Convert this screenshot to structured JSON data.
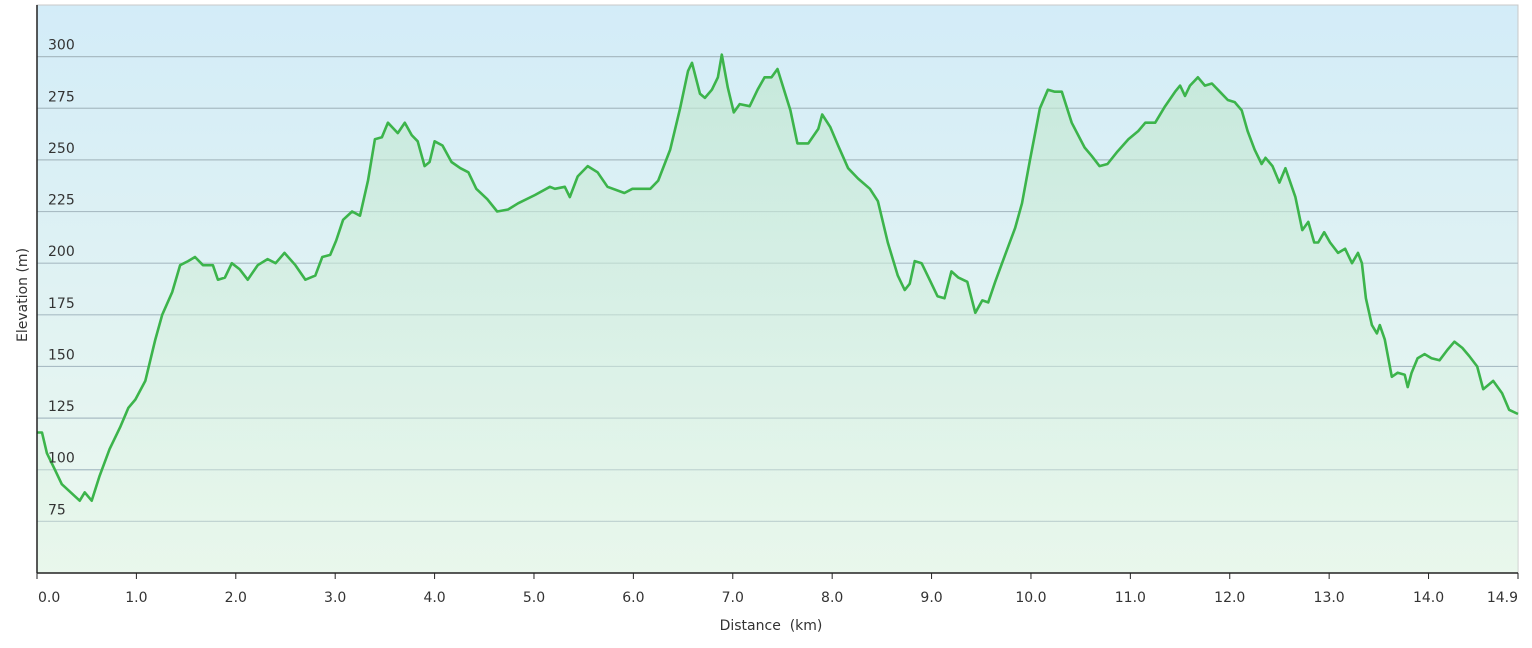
{
  "chart_data": {
    "type": "area-line",
    "x_label": "Distance  (km)",
    "y_label": "Elevation (m)",
    "color": "#3cb44b",
    "grid": true,
    "xlim": [
      0,
      14.9
    ],
    "ylim": [
      50,
      325
    ],
    "xticks": [
      {
        "value": 0,
        "label": "0.0"
      },
      {
        "value": 1,
        "label": "1.0"
      },
      {
        "value": 2,
        "label": "2.0"
      },
      {
        "value": 3,
        "label": "3.0"
      },
      {
        "value": 4,
        "label": "4.0"
      },
      {
        "value": 5,
        "label": "5.0"
      },
      {
        "value": 6,
        "label": "6.0"
      },
      {
        "value": 7,
        "label": "7.0"
      },
      {
        "value": 8,
        "label": "8.0"
      },
      {
        "value": 9,
        "label": "9.0"
      },
      {
        "value": 10,
        "label": "10.0"
      },
      {
        "value": 11,
        "label": "11.0"
      },
      {
        "value": 12,
        "label": "12.0"
      },
      {
        "value": 13,
        "label": "13.0"
      },
      {
        "value": 14,
        "label": "14.0"
      },
      14.9
    ],
    "yticks": [
      75,
      100,
      125,
      150,
      175,
      200,
      225,
      250,
      275,
      300
    ],
    "x": [
      0,
      0.05,
      0.1,
      0.18,
      0.25,
      0.43,
      0.48,
      0.55,
      0.63,
      0.73,
      0.84,
      0.92,
      0.99,
      1.09,
      1.19,
      1.26,
      1.36,
      1.44,
      1.52,
      1.59,
      1.67,
      1.77,
      1.82,
      1.89,
      1.96,
      2.04,
      2.12,
      2.22,
      2.32,
      2.4,
      2.49,
      2.6,
      2.7,
      2.8,
      2.87,
      2.95,
      3.01,
      3.08,
      3.17,
      3.25,
      3.33,
      3.4,
      3.47,
      3.53,
      3.63,
      3.7,
      3.77,
      3.83,
      3.9,
      3.95,
      4.0,
      4.08,
      4.17,
      4.26,
      4.34,
      4.42,
      4.53,
      4.63,
      4.74,
      4.84,
      5.01,
      5.16,
      5.21,
      5.31,
      5.36,
      5.44,
      5.54,
      5.64,
      5.74,
      5.91,
      5.99,
      6.17,
      6.25,
      6.37,
      6.47,
      6.55,
      6.59,
      6.67,
      6.72,
      6.79,
      6.85,
      6.89,
      6.95,
      7.01,
      7.07,
      7.17,
      7.25,
      7.32,
      7.39,
      7.45,
      7.58,
      7.65,
      7.76,
      7.86,
      7.9,
      7.98,
      8.06,
      8.16,
      8.26,
      8.38,
      8.46,
      8.56,
      8.66,
      8.73,
      8.78,
      8.83,
      8.9,
      8.98,
      9.06,
      9.13,
      9.2,
      9.27,
      9.36,
      9.44,
      9.51,
      9.57,
      9.64,
      9.74,
      9.84,
      9.91,
      9.99,
      10.09,
      10.17,
      10.24,
      10.31,
      10.41,
      10.54,
      10.61,
      10.69,
      10.77,
      10.87,
      10.98,
      11.08,
      11.15,
      11.25,
      11.35,
      11.45,
      11.5,
      11.55,
      11.6,
      11.68,
      11.75,
      11.82,
      11.9,
      11.98,
      12.05,
      12.12,
      12.18,
      12.25,
      12.32,
      12.36,
      12.43,
      12.5,
      12.56,
      12.66,
      12.73,
      12.79,
      12.85,
      12.89,
      12.95,
      13.01,
      13.09,
      13.16,
      13.23,
      13.29,
      13.33,
      13.37,
      13.43,
      13.48,
      13.51,
      13.56,
      13.63,
      13.69,
      13.76,
      13.79,
      13.83,
      13.89,
      13.96,
      14.03,
      14.11,
      14.19,
      14.26,
      14.34,
      14.41,
      14.49,
      14.55,
      14.65,
      14.74,
      14.81,
      14.9
    ],
    "values": [
      118,
      118,
      108,
      100,
      93,
      85,
      89,
      85,
      97,
      110,
      121,
      130,
      134,
      143,
      163,
      175,
      186,
      199,
      201,
      203,
      199,
      199,
      192,
      193,
      200,
      197,
      192,
      199,
      202,
      200,
      205,
      199,
      192,
      194,
      203,
      204,
      211,
      221,
      225,
      223,
      240,
      260,
      261,
      268,
      263,
      268,
      262,
      259,
      247,
      249,
      259,
      257,
      249,
      246,
      244,
      236,
      231,
      225,
      226,
      229,
      233,
      237,
      236,
      237,
      232,
      242,
      247,
      244,
      237,
      234,
      236,
      236,
      240,
      255,
      275,
      293,
      297,
      282,
      280,
      284,
      290,
      301,
      285,
      273,
      277,
      276,
      284,
      290,
      290,
      294,
      274,
      258,
      258,
      265,
      272,
      266,
      257,
      246,
      241,
      236,
      230,
      210,
      194,
      187,
      190,
      201,
      200,
      192,
      184,
      183,
      196,
      193,
      191,
      176,
      182,
      181,
      191,
      204,
      217,
      229,
      250,
      275,
      284,
      283,
      283,
      268,
      256,
      252,
      247,
      248,
      254,
      260,
      264,
      268,
      268,
      276,
      283,
      286,
      281,
      286,
      290,
      286,
      287,
      283,
      279,
      278,
      274,
      264,
      255,
      248,
      251,
      247,
      239,
      246,
      232,
      216,
      220,
      210,
      210,
      215,
      210,
      205,
      207,
      200,
      205,
      200,
      183,
      170,
      166,
      170,
      163,
      145,
      147,
      146,
      140,
      147,
      154,
      156,
      154,
      153,
      158,
      162,
      159,
      155,
      150,
      139,
      143,
      137,
      129,
      127
    ]
  }
}
